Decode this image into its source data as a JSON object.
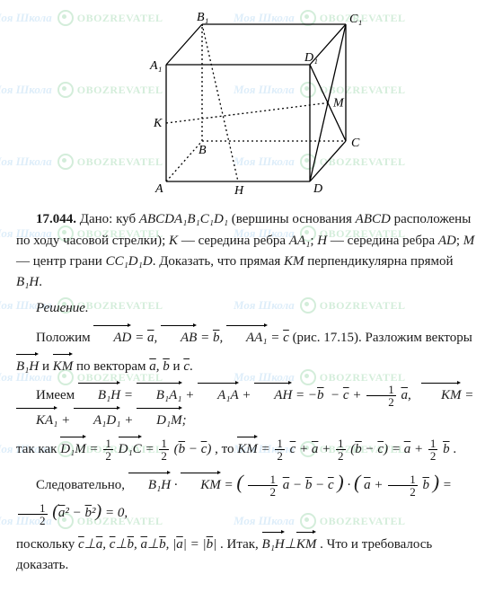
{
  "watermark": {
    "text1": "Моя Школа",
    "text2": "OBOZREVATEL"
  },
  "figure": {
    "labels": {
      "B1": "B₁",
      "C1": "C₁",
      "A1": "A₁",
      "D1": "D₁",
      "K": "K",
      "B": "B",
      "C": "C",
      "M": "M",
      "A": "A",
      "H": "H",
      "D": "D"
    }
  },
  "text": {
    "num": "17.044.",
    "p1a": " Дано: куб ",
    "p1cube": "ABCDA₁B₁C₁D₁",
    "p1b": " (вершины основания ",
    "p1abcd": "ABCD",
    "p1c": " расположены по ходу часовой стрелки); ",
    "p1k": "K",
    "p1d": " — середина ребра ",
    "p1aa1": "AA₁",
    "p1e": "; ",
    "p1h": "H",
    "p1f": " — середина ребра ",
    "p1ad": "AD",
    "p1g": "; ",
    "p1m": "M",
    "p1hh": " — центр грани ",
    "p1cc": "CC₁D₁D",
    "p1i": ". Доказать, что прямая ",
    "p1km": "KM",
    "p1j": " перпендикулярна прямой ",
    "p1bh": "B₁H",
    "p1k2": ".",
    "solution": "Решение.",
    "p2a": "Положим ",
    "p2b": ". Разложим векторы",
    "p2c": " по векторам ",
    "p2d": " и ",
    "p3a": "Имеем ",
    "p4a": "так как ",
    "p4b": ", то ",
    "p5a": "Следовательно, ",
    "p6a": "поскольку ",
    "p6b": ". Итак, ",
    "p6c": ". Что и требовалось доказать.",
    "ref": " (рис. 17.15)",
    "dot": "."
  },
  "vectors": {
    "AD": "AD",
    "AB": "AB",
    "AA1": "AA₁",
    "B1H": "B₁H",
    "KM": "KM",
    "B1A1": "B₁A₁",
    "A1A": "A₁A",
    "AH": "AH",
    "KA1": "KA₁",
    "A1D1": "A₁D₁",
    "D1M": "D₁M",
    "D1C": "D₁C",
    "a": "a",
    "b": "b",
    "c": "c"
  },
  "sym": {
    "eq": " = ",
    "plus": " + ",
    "minus": "−",
    "half_n": "1",
    "half_d": "2",
    "perp": "⊥",
    "comma": ", ",
    "semi": "; ",
    "lp": "(",
    "rp": ")",
    "dot": " · ",
    "abs_l": "|",
    "abs_r": "|",
    "sq": "²",
    "zero": " = 0,"
  },
  "style": {
    "fig_width": 260,
    "fig_height": 205,
    "stroke": "#000000",
    "dash": "2,3",
    "font": "italic 14px 'Times New Roman'",
    "label_color": "#000"
  }
}
